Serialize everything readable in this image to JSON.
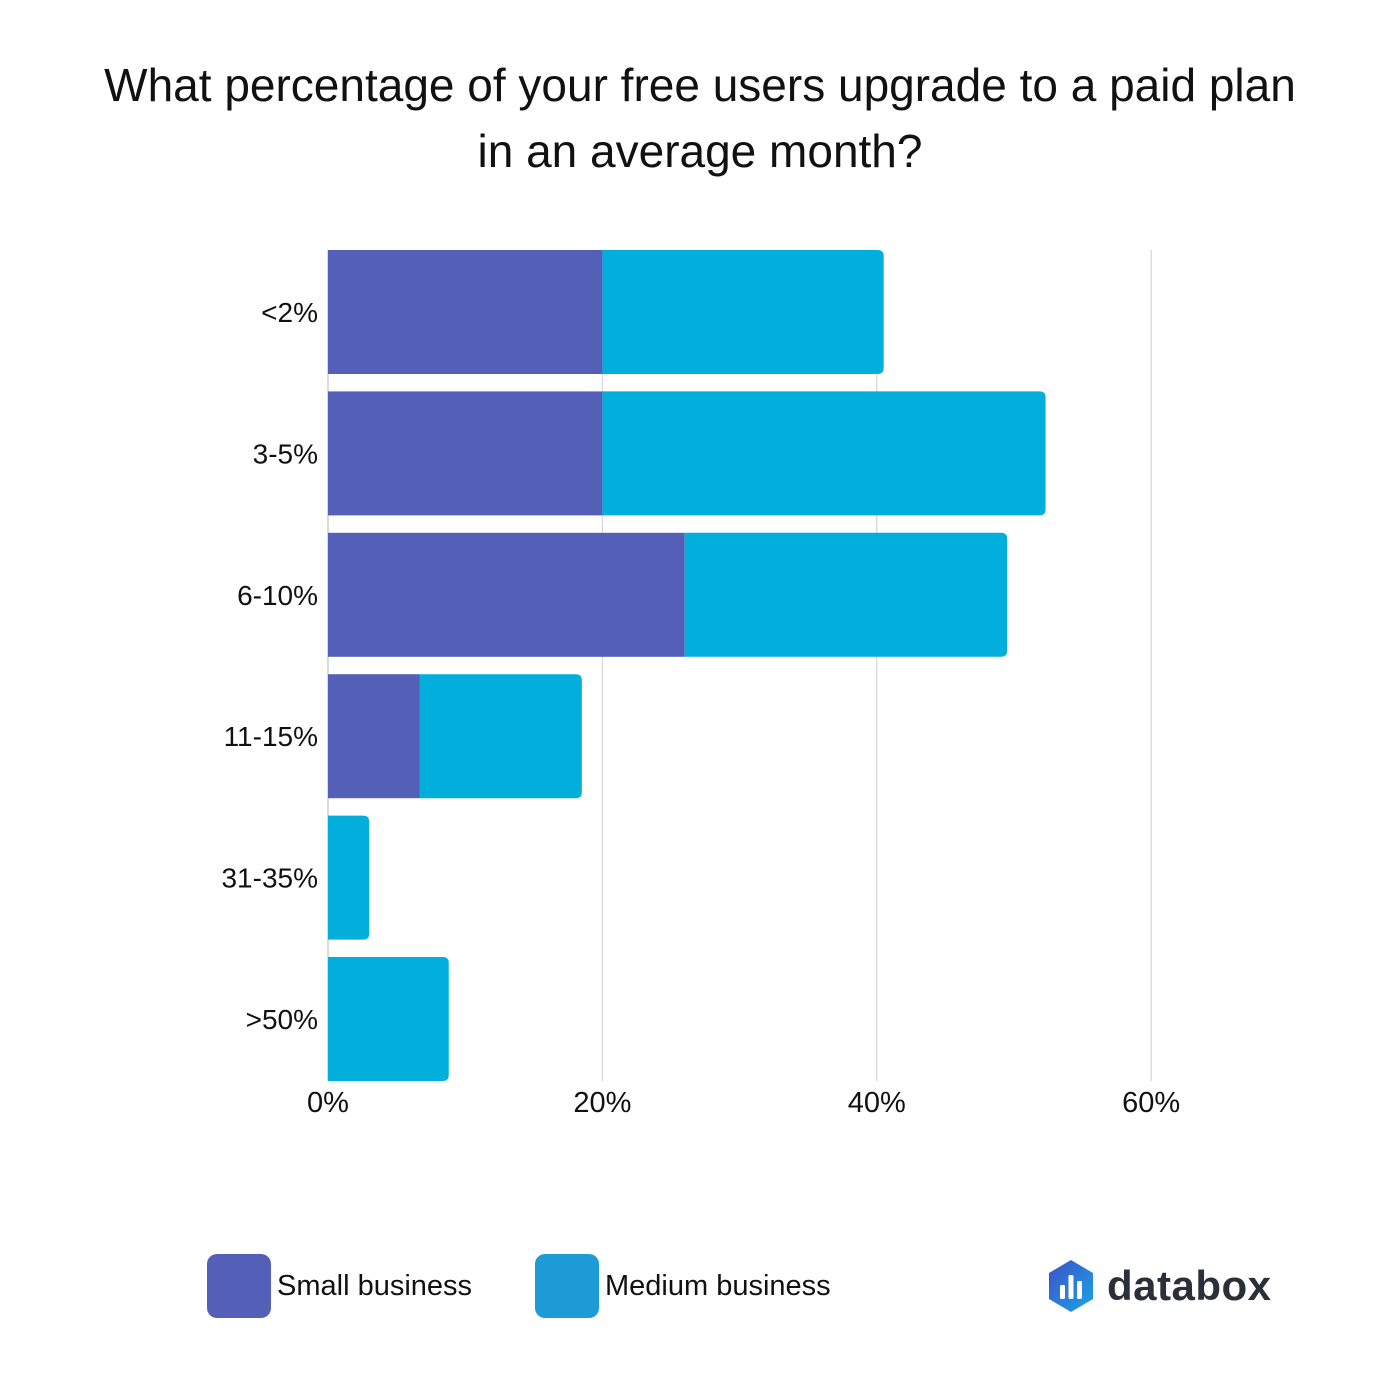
{
  "chart_data": {
    "type": "bar",
    "orientation": "horizontal",
    "stacked": true,
    "title": "What percentage of your free users upgrade to a paid plan in an average month?",
    "categories": [
      "<2%",
      "3-5%",
      "6-10%",
      "11-15%",
      "31-35%",
      ">50%"
    ],
    "series": [
      {
        "name": "Small business",
        "color": "#5460b8",
        "values": [
          20,
          20,
          26,
          6.7,
          0,
          0
        ]
      },
      {
        "name": "Medium business",
        "color": "#02aedc",
        "values": [
          20.5,
          32.3,
          23.5,
          11.8,
          3,
          8.8
        ]
      }
    ],
    "x_ticks": [
      "0%",
      "20%",
      "40%",
      "60%"
    ],
    "x_tick_values": [
      0,
      20,
      40,
      60
    ],
    "xlim": [
      0,
      60
    ],
    "grid": true,
    "legend_position": "bottom-left"
  },
  "legend": {
    "items": [
      {
        "label": "Small business",
        "color": "#5460b8"
      },
      {
        "label": "Medium business",
        "color": "#1c9bd6"
      }
    ]
  },
  "brand": {
    "name": "databox",
    "logo_icon": "databox-logo-icon"
  }
}
